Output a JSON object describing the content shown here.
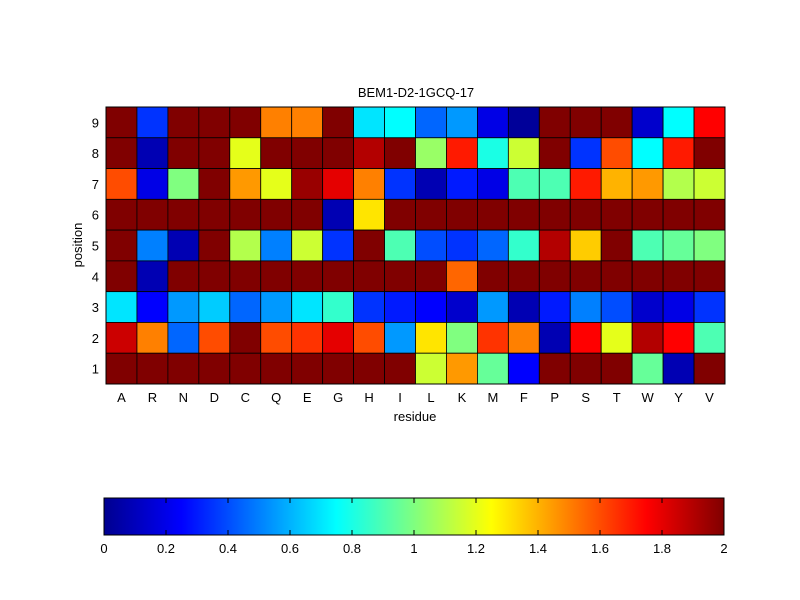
{
  "chart_data": {
    "type": "heatmap",
    "title": "BEM1-D2-1GCQ-17",
    "xlabel": "residue",
    "ylabel": "position",
    "x_categories": [
      "A",
      "R",
      "N",
      "D",
      "C",
      "Q",
      "E",
      "G",
      "H",
      "I",
      "L",
      "K",
      "M",
      "F",
      "P",
      "S",
      "T",
      "W",
      "Y",
      "V"
    ],
    "y_categories": [
      "9",
      "8",
      "7",
      "6",
      "5",
      "4",
      "3",
      "2",
      "1"
    ],
    "values": [
      [
        2.0,
        0.35,
        2.0,
        2.0,
        2.0,
        1.5,
        1.5,
        2.0,
        0.7,
        0.75,
        0.45,
        0.55,
        0.2,
        0.05,
        2.0,
        2.0,
        2.0,
        0.15,
        0.75,
        1.75
      ],
      [
        2.0,
        0.1,
        2.0,
        2.0,
        1.2,
        2.0,
        2.0,
        2.0,
        1.9,
        2.0,
        1.05,
        1.7,
        0.8,
        1.15,
        2.0,
        0.35,
        1.6,
        0.75,
        1.7,
        2.0
      ],
      [
        1.6,
        0.2,
        1.0,
        2.0,
        1.45,
        1.2,
        1.95,
        1.8,
        1.5,
        0.35,
        0.1,
        0.3,
        0.2,
        0.9,
        0.9,
        1.7,
        1.4,
        1.45,
        1.1,
        1.15
      ],
      [
        2.0,
        2.0,
        2.0,
        2.0,
        2.0,
        2.0,
        2.0,
        0.1,
        1.3,
        2.0,
        2.0,
        2.0,
        2.0,
        2.0,
        2.0,
        2.0,
        2.0,
        2.0,
        2.0,
        2.0
      ],
      [
        2.0,
        0.5,
        0.1,
        2.0,
        1.1,
        0.5,
        1.15,
        0.35,
        2.0,
        0.9,
        0.4,
        0.35,
        0.45,
        0.85,
        1.9,
        1.35,
        2.0,
        0.9,
        0.95,
        1.0
      ],
      [
        2.0,
        0.1,
        2.0,
        2.0,
        2.0,
        2.0,
        2.0,
        2.0,
        2.0,
        2.0,
        2.0,
        1.55,
        2.0,
        2.0,
        2.0,
        2.0,
        2.0,
        2.0,
        2.0,
        2.0
      ],
      [
        0.7,
        0.25,
        0.55,
        0.65,
        0.45,
        0.55,
        0.7,
        0.85,
        0.35,
        0.3,
        0.25,
        0.15,
        0.55,
        0.1,
        0.3,
        0.5,
        0.4,
        0.15,
        0.2,
        0.35
      ],
      [
        1.85,
        1.5,
        0.45,
        1.6,
        2.0,
        1.6,
        1.65,
        1.8,
        1.6,
        0.55,
        1.3,
        1.0,
        1.65,
        1.5,
        0.1,
        1.75,
        1.2,
        1.9,
        1.75,
        0.9
      ],
      [
        2.0,
        2.0,
        2.0,
        2.0,
        2.0,
        2.0,
        2.0,
        2.0,
        2.0,
        2.0,
        1.15,
        1.45,
        0.95,
        0.25,
        2.0,
        2.0,
        2.0,
        0.95,
        0.1,
        2.0
      ]
    ],
    "colorbar": {
      "range": [
        0,
        2
      ],
      "ticks": [
        "0",
        "0.2",
        "0.4",
        "0.6",
        "0.8",
        "1",
        "1.2",
        "1.4",
        "1.6",
        "1.8",
        "2"
      ],
      "colormap": "jet"
    }
  }
}
